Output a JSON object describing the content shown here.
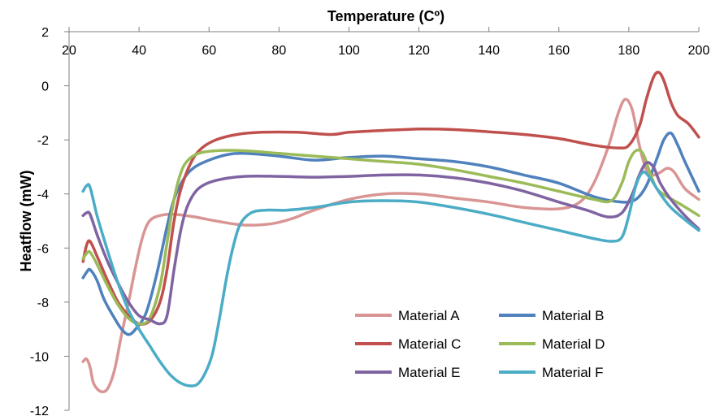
{
  "chart_data": {
    "type": "line",
    "title": "",
    "xlabel": "Temperature (Cº)",
    "ylabel": "Heatflow (mW)",
    "x_axis_position": "top",
    "xlim": [
      20,
      200
    ],
    "ylim": [
      -12,
      2
    ],
    "x_ticks": [
      "20",
      "40",
      "60",
      "80",
      "100",
      "120",
      "140",
      "160",
      "180",
      "200"
    ],
    "y_ticks": [
      "2",
      "0",
      "-2",
      "-4",
      "-6",
      "-8",
      "-10",
      "-12"
    ],
    "grid": false,
    "legend_position": "lower-right",
    "series": [
      {
        "name": "Material A",
        "color": "#D99594",
        "points": [
          [
            24,
            -10.2
          ],
          [
            25,
            -10.1
          ],
          [
            26,
            -10.4
          ],
          [
            27,
            -11
          ],
          [
            29,
            -11.3
          ],
          [
            31,
            -11.2
          ],
          [
            33,
            -10.5
          ],
          [
            35,
            -9.2
          ],
          [
            37,
            -8
          ],
          [
            39,
            -6.7
          ],
          [
            41,
            -5.6
          ],
          [
            43,
            -5
          ],
          [
            46,
            -4.8
          ],
          [
            50,
            -4.75
          ],
          [
            56,
            -4.85
          ],
          [
            62,
            -5
          ],
          [
            70,
            -5.15
          ],
          [
            78,
            -5.1
          ],
          [
            84,
            -4.9
          ],
          [
            90,
            -4.6
          ],
          [
            100,
            -4.2
          ],
          [
            110,
            -4.0
          ],
          [
            120,
            -4.0
          ],
          [
            130,
            -4.15
          ],
          [
            140,
            -4.3
          ],
          [
            150,
            -4.5
          ],
          [
            160,
            -4.55
          ],
          [
            166,
            -4.3
          ],
          [
            170,
            -3.6
          ],
          [
            174,
            -2.3
          ],
          [
            177,
            -1
          ],
          [
            179,
            -0.5
          ],
          [
            181,
            -0.9
          ],
          [
            183,
            -2.2
          ],
          [
            185,
            -3.1
          ],
          [
            187,
            -3.3
          ],
          [
            189,
            -3.2
          ],
          [
            191,
            -3.05
          ],
          [
            193,
            -3.2
          ],
          [
            196,
            -3.8
          ],
          [
            200,
            -4.2
          ]
        ]
      },
      {
        "name": "Material B",
        "color": "#4F81BD",
        "points": [
          [
            24,
            -7.1
          ],
          [
            25,
            -6.9
          ],
          [
            26,
            -6.8
          ],
          [
            28,
            -7.2
          ],
          [
            30,
            -7.9
          ],
          [
            33,
            -8.6
          ],
          [
            35,
            -9.0
          ],
          [
            37,
            -9.2
          ],
          [
            39,
            -9.0
          ],
          [
            42,
            -8.4
          ],
          [
            45,
            -7.0
          ],
          [
            48,
            -5.2
          ],
          [
            50,
            -4.2
          ],
          [
            53,
            -3.4
          ],
          [
            56,
            -3.0
          ],
          [
            60,
            -2.75
          ],
          [
            65,
            -2.55
          ],
          [
            70,
            -2.5
          ],
          [
            80,
            -2.6
          ],
          [
            90,
            -2.75
          ],
          [
            100,
            -2.65
          ],
          [
            110,
            -2.6
          ],
          [
            120,
            -2.7
          ],
          [
            130,
            -2.8
          ],
          [
            140,
            -3.0
          ],
          [
            150,
            -3.3
          ],
          [
            160,
            -3.6
          ],
          [
            170,
            -4.1
          ],
          [
            178,
            -4.3
          ],
          [
            182,
            -4.2
          ],
          [
            185,
            -3.7
          ],
          [
            188,
            -2.7
          ],
          [
            190,
            -2.0
          ],
          [
            192,
            -1.75
          ],
          [
            194,
            -2.2
          ],
          [
            196,
            -2.8
          ],
          [
            200,
            -3.9
          ]
        ]
      },
      {
        "name": "Material C",
        "color": "#C0504D",
        "points": [
          [
            24,
            -6.5
          ],
          [
            25,
            -5.9
          ],
          [
            26,
            -5.75
          ],
          [
            28,
            -6.3
          ],
          [
            31,
            -7.2
          ],
          [
            34,
            -8.0
          ],
          [
            37,
            -8.5
          ],
          [
            40,
            -8.8
          ],
          [
            43,
            -8.7
          ],
          [
            46,
            -8.0
          ],
          [
            48,
            -6.8
          ],
          [
            50,
            -5.0
          ],
          [
            52,
            -3.8
          ],
          [
            55,
            -2.8
          ],
          [
            58,
            -2.3
          ],
          [
            62,
            -2.0
          ],
          [
            68,
            -1.8
          ],
          [
            75,
            -1.72
          ],
          [
            85,
            -1.72
          ],
          [
            95,
            -1.8
          ],
          [
            100,
            -1.72
          ],
          [
            110,
            -1.65
          ],
          [
            120,
            -1.6
          ],
          [
            130,
            -1.62
          ],
          [
            140,
            -1.7
          ],
          [
            150,
            -1.8
          ],
          [
            160,
            -1.95
          ],
          [
            170,
            -2.2
          ],
          [
            177,
            -2.3
          ],
          [
            180,
            -2.2
          ],
          [
            183,
            -1.5
          ],
          [
            185,
            -0.5
          ],
          [
            187,
            0.3
          ],
          [
            188.5,
            0.5
          ],
          [
            190,
            0.2
          ],
          [
            192,
            -0.6
          ],
          [
            194,
            -1.1
          ],
          [
            197,
            -1.4
          ],
          [
            200,
            -1.9
          ]
        ]
      },
      {
        "name": "Material D",
        "color": "#9BBB59",
        "points": [
          [
            24,
            -6.4
          ],
          [
            25,
            -6.2
          ],
          [
            26,
            -6.15
          ],
          [
            28,
            -6.6
          ],
          [
            31,
            -7.4
          ],
          [
            34,
            -8.1
          ],
          [
            37,
            -8.6
          ],
          [
            40,
            -8.8
          ],
          [
            43,
            -8.6
          ],
          [
            46,
            -7.4
          ],
          [
            48,
            -5.8
          ],
          [
            50,
            -4.2
          ],
          [
            52,
            -3.2
          ],
          [
            54,
            -2.75
          ],
          [
            57,
            -2.5
          ],
          [
            62,
            -2.4
          ],
          [
            70,
            -2.4
          ],
          [
            80,
            -2.5
          ],
          [
            90,
            -2.6
          ],
          [
            100,
            -2.7
          ],
          [
            110,
            -2.8
          ],
          [
            120,
            -2.9
          ],
          [
            130,
            -3.1
          ],
          [
            140,
            -3.35
          ],
          [
            150,
            -3.6
          ],
          [
            160,
            -3.9
          ],
          [
            170,
            -4.2
          ],
          [
            175,
            -4.25
          ],
          [
            178,
            -3.6
          ],
          [
            180,
            -2.8
          ],
          [
            182,
            -2.4
          ],
          [
            184,
            -2.5
          ],
          [
            186,
            -3.2
          ],
          [
            188,
            -3.8
          ],
          [
            191,
            -4.1
          ],
          [
            195,
            -4.4
          ],
          [
            200,
            -4.8
          ]
        ]
      },
      {
        "name": "Material E",
        "color": "#8064A2",
        "points": [
          [
            24,
            -4.8
          ],
          [
            25,
            -4.7
          ],
          [
            26,
            -4.75
          ],
          [
            28,
            -5.5
          ],
          [
            31,
            -6.5
          ],
          [
            34,
            -7.3
          ],
          [
            37,
            -8.0
          ],
          [
            40,
            -8.5
          ],
          [
            43,
            -8.65
          ],
          [
            46,
            -8.8
          ],
          [
            48,
            -8.5
          ],
          [
            50,
            -6.8
          ],
          [
            52,
            -5.3
          ],
          [
            54,
            -4.4
          ],
          [
            57,
            -3.8
          ],
          [
            62,
            -3.5
          ],
          [
            70,
            -3.35
          ],
          [
            80,
            -3.35
          ],
          [
            90,
            -3.38
          ],
          [
            100,
            -3.35
          ],
          [
            110,
            -3.3
          ],
          [
            120,
            -3.3
          ],
          [
            130,
            -3.4
          ],
          [
            140,
            -3.6
          ],
          [
            150,
            -3.9
          ],
          [
            160,
            -4.3
          ],
          [
            168,
            -4.6
          ],
          [
            174,
            -4.85
          ],
          [
            178,
            -4.7
          ],
          [
            181,
            -4.0
          ],
          [
            183,
            -3.3
          ],
          [
            185,
            -2.85
          ],
          [
            187,
            -3.0
          ],
          [
            189,
            -3.6
          ],
          [
            192,
            -4.2
          ],
          [
            196,
            -4.8
          ],
          [
            200,
            -5.3
          ]
        ]
      },
      {
        "name": "Material F",
        "color": "#4BACC6",
        "points": [
          [
            24,
            -3.9
          ],
          [
            25,
            -3.7
          ],
          [
            26,
            -3.75
          ],
          [
            28,
            -4.8
          ],
          [
            31,
            -6.1
          ],
          [
            34,
            -7.3
          ],
          [
            37,
            -8.3
          ],
          [
            40,
            -9.0
          ],
          [
            43,
            -9.6
          ],
          [
            46,
            -10.2
          ],
          [
            49,
            -10.7
          ],
          [
            52,
            -11.0
          ],
          [
            55,
            -11.1
          ],
          [
            57,
            -11.0
          ],
          [
            59,
            -10.6
          ],
          [
            61,
            -9.9
          ],
          [
            63,
            -8.6
          ],
          [
            65,
            -7.1
          ],
          [
            67,
            -5.9
          ],
          [
            69,
            -5.1
          ],
          [
            72,
            -4.7
          ],
          [
            76,
            -4.6
          ],
          [
            82,
            -4.6
          ],
          [
            90,
            -4.5
          ],
          [
            100,
            -4.3
          ],
          [
            110,
            -4.25
          ],
          [
            120,
            -4.3
          ],
          [
            130,
            -4.5
          ],
          [
            140,
            -4.75
          ],
          [
            150,
            -5.05
          ],
          [
            160,
            -5.35
          ],
          [
            170,
            -5.65
          ],
          [
            175,
            -5.75
          ],
          [
            178,
            -5.6
          ],
          [
            180,
            -4.8
          ],
          [
            182,
            -3.7
          ],
          [
            184,
            -3.2
          ],
          [
            186,
            -3.4
          ],
          [
            189,
            -4.0
          ],
          [
            192,
            -4.5
          ],
          [
            196,
            -4.95
          ],
          [
            200,
            -5.35
          ]
        ]
      }
    ]
  }
}
